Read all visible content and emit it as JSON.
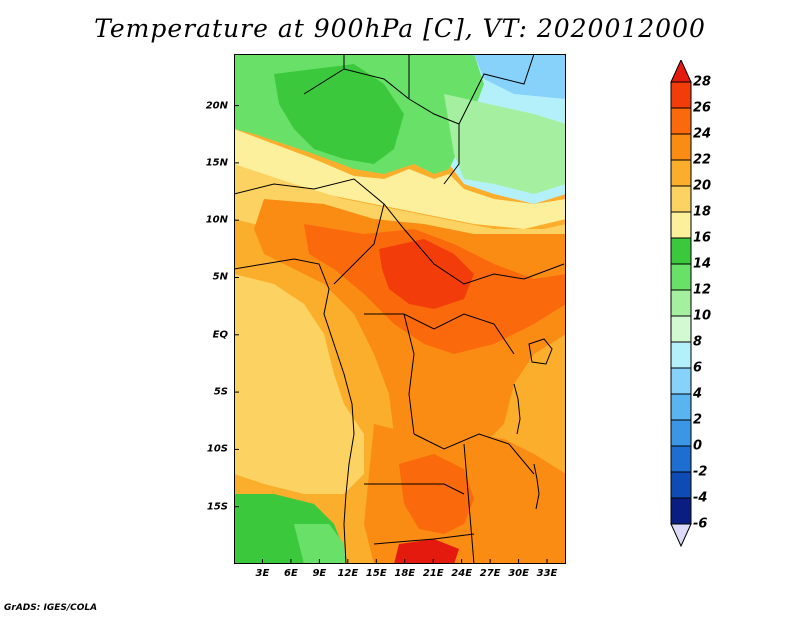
{
  "title": "Temperature at 900hPa [C], VT: 2020012000",
  "credit": "GrADS: IGES/COLA",
  "map": {
    "type": "filled-contour-map",
    "variable": "Temperature at 900hPa",
    "unit": "C",
    "valid_time": "2020012000",
    "lat_ticks": [
      "20N",
      "15N",
      "10N",
      "5N",
      "EQ",
      "5S",
      "10S",
      "15S"
    ],
    "lon_ticks": [
      "3E",
      "6E",
      "9E",
      "12E",
      "15E",
      "18E",
      "21E",
      "24E",
      "27E",
      "30E",
      "33E"
    ],
    "lat_range": [
      -20,
      24.5
    ],
    "lon_range": [
      0,
      35
    ]
  },
  "colorbar": {
    "labels": [
      "28",
      "26",
      "24",
      "22",
      "20",
      "18",
      "16",
      "14",
      "12",
      "10",
      "8",
      "6",
      "4",
      "2",
      "0",
      "-2",
      "-4",
      "-6"
    ],
    "colors": [
      "#e41a0f",
      "#f23c0a",
      "#fa6a0c",
      "#fa8c14",
      "#fbad2c",
      "#fcd262",
      "#fdf09c",
      "#3cc83c",
      "#69e169",
      "#a5f0a0",
      "#d2fad2",
      "#b4f0fa",
      "#87d2fa",
      "#5ab4f0",
      "#3c96e6",
      "#1e6ed2",
      "#0f4bb4",
      "#0a1e82",
      "#dcdcfa"
    ]
  }
}
